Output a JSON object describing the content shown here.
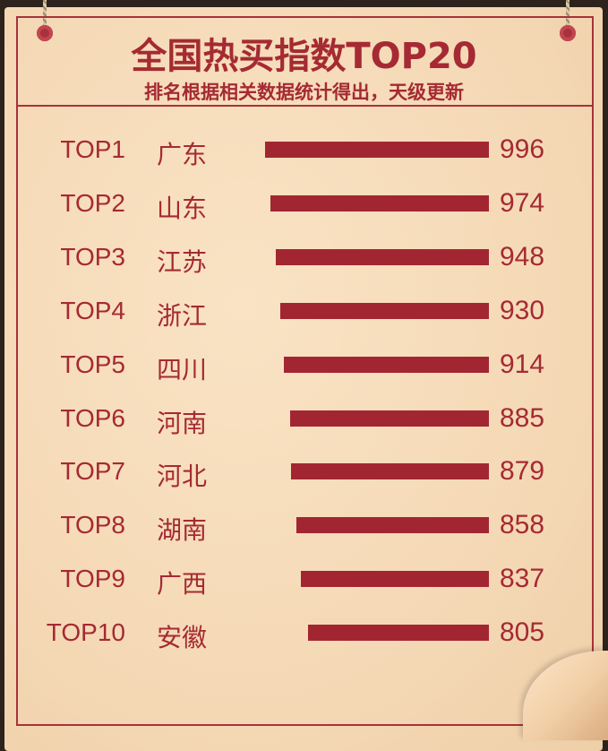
{
  "chart_data": {
    "type": "bar",
    "orientation": "horizontal",
    "title": "全国热买指数TOP20",
    "subtitle": "排名根据相关数据统计得出，天级更新",
    "ranks": [
      "TOP1",
      "TOP2",
      "TOP3",
      "TOP4",
      "TOP5",
      "TOP6",
      "TOP7",
      "TOP8",
      "TOP9",
      "TOP10"
    ],
    "categories": [
      "广东",
      "山东",
      "江苏",
      "浙江",
      "四川",
      "河南",
      "河北",
      "湖南",
      "广西",
      "安徽"
    ],
    "values": [
      996,
      974,
      948,
      930,
      914,
      885,
      879,
      858,
      837,
      805
    ],
    "xlim": [
      0,
      1000
    ],
    "grid": false,
    "colors": {
      "bar": "#a22632",
      "text": "#a52a33",
      "paper": "#f5d9b6"
    }
  }
}
